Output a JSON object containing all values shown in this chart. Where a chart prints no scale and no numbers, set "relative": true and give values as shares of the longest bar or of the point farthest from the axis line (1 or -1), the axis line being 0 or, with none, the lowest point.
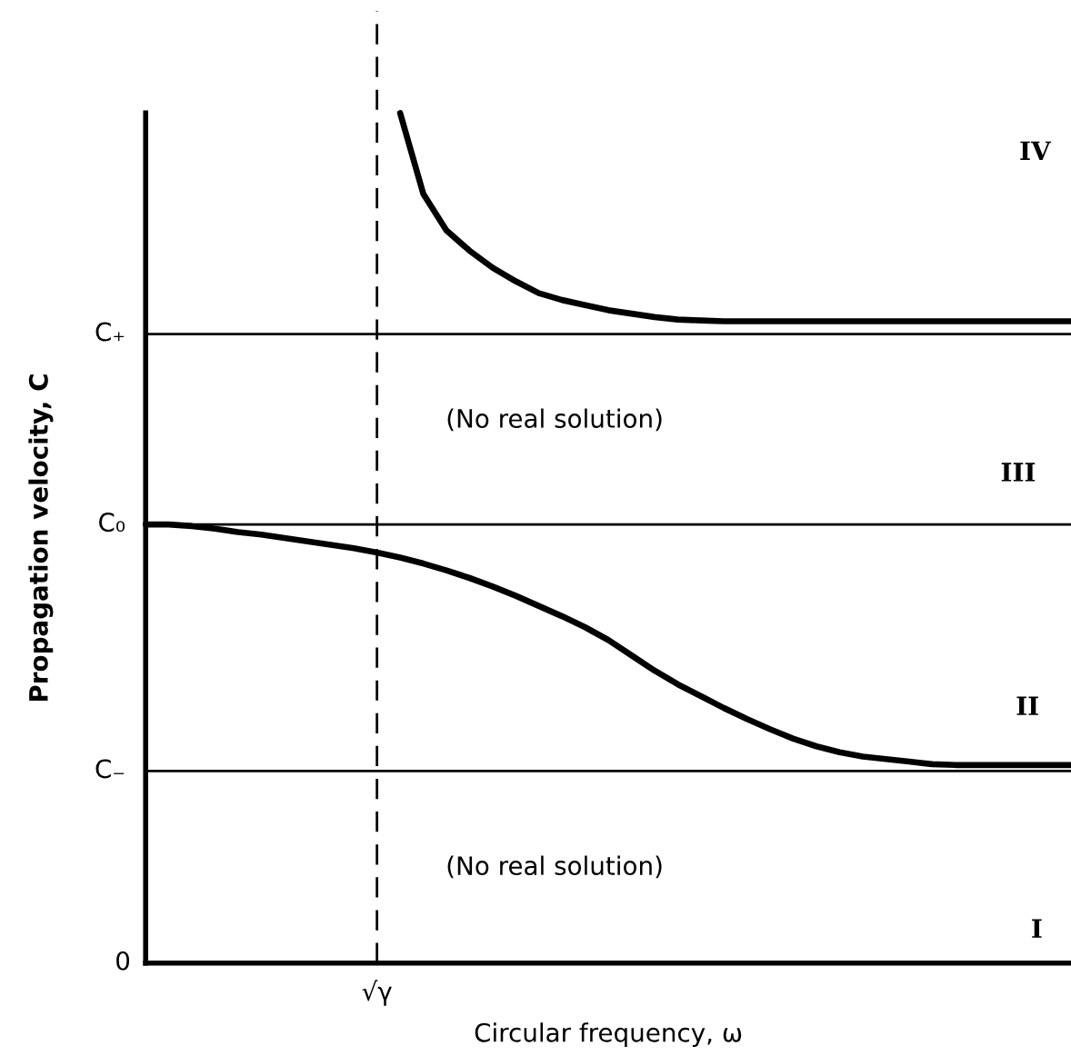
{
  "chart_data": {
    "type": "line",
    "relative": true,
    "xlabel": "Circular frequency, ω",
    "ylabel": "Propagation velocity, C",
    "categories": [
      null,
      null,
      null,
      null,
      null,
      null,
      null,
      null,
      null,
      null,
      null,
      null,
      null,
      null,
      null,
      null,
      null,
      null,
      null,
      null,
      null,
      null,
      null,
      null,
      null,
      null,
      null,
      null,
      null,
      null,
      null,
      null,
      null,
      null,
      null,
      null,
      null,
      null,
      null,
      null,
      null
    ],
    "series": [
      {
        "color": "#000000",
        "values": [
          null,
          null,
          null,
          null,
          null,
          null,
          null,
          null,
          null,
          null,
          null,
          1.0,
          0.905,
          0.862,
          0.838,
          0.818,
          0.802,
          0.788,
          0.78,
          0.774,
          0.768,
          0.764,
          0.76,
          0.757,
          0.756,
          0.755,
          0.755,
          0.755,
          0.755,
          0.755,
          0.755,
          0.755,
          0.755,
          0.755,
          0.755,
          0.755,
          0.755,
          0.755,
          0.755,
          0.755,
          0.755
        ]
      },
      {
        "color": "#000000",
        "values": [
          0.516,
          0.516,
          0.514,
          0.511,
          0.507,
          0.504,
          0.5,
          0.496,
          0.492,
          0.488,
          0.483,
          0.477,
          0.47,
          0.462,
          0.453,
          0.443,
          0.432,
          0.42,
          0.408,
          0.395,
          0.38,
          0.362,
          0.344,
          0.328,
          0.314,
          0.3,
          0.287,
          0.275,
          0.264,
          0.255,
          0.248,
          0.243,
          0.24,
          0.237,
          0.234,
          0.233,
          0.233,
          0.233,
          0.233,
          0.233,
          0.233
        ]
      }
    ],
    "ref_lines": [
      {
        "axis": "y",
        "value": 0.74,
        "label": "C₊",
        "color": "#000000",
        "line_style": "solid"
      },
      {
        "axis": "y",
        "value": 0.516,
        "label": "C₀",
        "color": "#000000",
        "line_style": "solid"
      },
      {
        "axis": "y",
        "value": 0.226,
        "label": "C₋",
        "color": "#000000",
        "line_style": "solid"
      }
    ],
    "annotations": [
      "0",
      "√γ",
      "(No real solution)",
      "(No real solution)",
      "IV",
      "III",
      "II",
      "I"
    ],
    "legend": false,
    "marker": "none",
    "line_style": "solid"
  }
}
